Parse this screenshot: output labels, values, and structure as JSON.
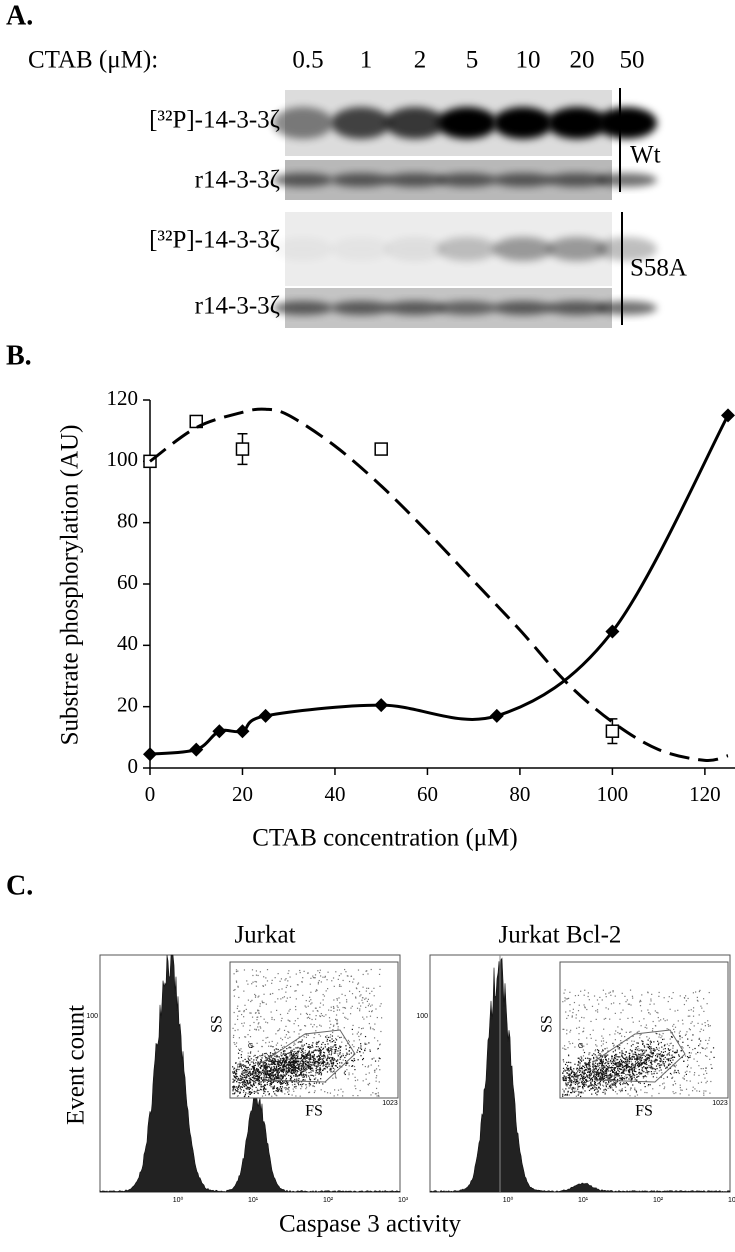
{
  "panel_a": {
    "label": "A.",
    "header": "CTAB (μM):",
    "concentrations": [
      "0.5",
      "1",
      "2",
      "5",
      "10",
      "20",
      "50"
    ],
    "rows": [
      "[³²P]-14-3-3ζ",
      "r14-3-3ζ",
      "[³²P]-14-3-3ζ",
      "r14-3-3ζ"
    ],
    "groups": [
      "Wt",
      "S58A"
    ]
  },
  "chart_data": {
    "type": "line",
    "label": "B.",
    "y_label": "Substrate phosphorylation (AU)",
    "x_label": "CTAB concentration (μM)",
    "xlim": [
      0,
      125
    ],
    "xticks": [
      0,
      20,
      40,
      60,
      80,
      100,
      120
    ],
    "ylim": [
      0,
      120
    ],
    "yticks": [
      0,
      20,
      40,
      60,
      80,
      100,
      120
    ],
    "series": [
      {
        "color": "#000000",
        "marker": "diamond",
        "line_style": "solid",
        "x": [
          0,
          10,
          15,
          20,
          25,
          50,
          75,
          100,
          125
        ],
        "values": [
          4.5,
          6,
          12,
          12,
          17,
          20.5,
          17,
          44.5,
          115
        ]
      },
      {
        "color": "#000000",
        "marker": "square",
        "line_style": "none",
        "x": [
          0,
          10,
          20,
          50,
          100
        ],
        "values": [
          100,
          113,
          104,
          104,
          12
        ],
        "errors": [
          null,
          null,
          5,
          1,
          4
        ]
      },
      {
        "color": "#000000",
        "marker": "none",
        "line_style": "dashed",
        "x": [
          0,
          10,
          20,
          25,
          30,
          40,
          50,
          60,
          70,
          80,
          90,
          100,
          110,
          120,
          125
        ],
        "values": [
          100,
          111,
          116,
          117,
          115,
          105,
          92,
          77,
          61,
          45,
          28,
          15,
          6,
          2.5,
          4
        ]
      }
    ]
  },
  "panel_c": {
    "label": "C.",
    "y_label": "Event count",
    "x_label": "Caspase 3 activity",
    "plots": [
      {
        "title": "Jurkat",
        "y_tick": "100",
        "x_ticks": [
          "10⁰",
          "10¹",
          "10²",
          "10³"
        ],
        "inset": {
          "y_label": "SS",
          "x_label": "FS",
          "gate": "G",
          "x_max": "1023"
        }
      },
      {
        "title": "Jurkat Bcl-2",
        "y_tick": "100",
        "x_ticks": [
          "10⁰",
          "10¹",
          "10²",
          "10³"
        ],
        "inset": {
          "y_label": "SS",
          "x_label": "FS",
          "gate": "G",
          "x_max": "1023"
        }
      }
    ]
  }
}
